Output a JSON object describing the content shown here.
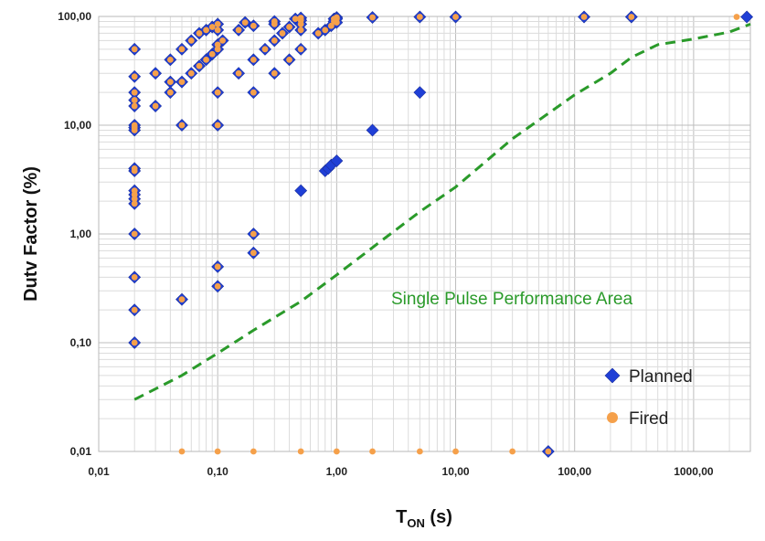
{
  "chart_data": {
    "type": "scatter",
    "title": "",
    "xlabel_main": "T",
    "xlabel_sub": "ON",
    "xlabel_unit": " (s)",
    "ylabel": "Dutv Factor (%)",
    "xscale": "log",
    "yscale": "log",
    "xlim": [
      0.01,
      3000
    ],
    "ylim": [
      0.01,
      100
    ],
    "grid": true,
    "legend_position": "bottom-right",
    "x_tick_labels": [
      {
        "value": 0.01,
        "label": "0,01"
      },
      {
        "value": 0.1,
        "label": "0,10"
      },
      {
        "value": 1,
        "label": "1,00"
      },
      {
        "value": 10,
        "label": "10,00"
      },
      {
        "value": 100,
        "label": "100,00"
      },
      {
        "value": 1000,
        "label": "1000,00"
      }
    ],
    "y_tick_labels": [
      {
        "value": 0.01,
        "label": "0,01"
      },
      {
        "value": 0.1,
        "label": "0,10"
      },
      {
        "value": 1,
        "label": "1,00"
      },
      {
        "value": 10,
        "label": "10,00"
      },
      {
        "value": 100,
        "label": "100,00"
      }
    ],
    "annotation": {
      "text": "Single Pulse Performance Area",
      "color": "#2a9a2a"
    },
    "series": [
      {
        "name": "Planned",
        "marker": "diamond",
        "color": "#1f3fd6",
        "points": [
          [
            0.02,
            50
          ],
          [
            0.02,
            28
          ],
          [
            0.02,
            20
          ],
          [
            0.02,
            17
          ],
          [
            0.02,
            15
          ],
          [
            0.02,
            10
          ],
          [
            0.02,
            9.5
          ],
          [
            0.02,
            9
          ],
          [
            0.02,
            4
          ],
          [
            0.02,
            3.8
          ],
          [
            0.02,
            2.5
          ],
          [
            0.02,
            2.3
          ],
          [
            0.02,
            2.1
          ],
          [
            0.02,
            1.9
          ],
          [
            0.02,
            1
          ],
          [
            0.02,
            0.4
          ],
          [
            0.02,
            0.2
          ],
          [
            0.02,
            0.1
          ],
          [
            0.03,
            30
          ],
          [
            0.03,
            15
          ],
          [
            0.04,
            40
          ],
          [
            0.04,
            25
          ],
          [
            0.04,
            20
          ],
          [
            0.05,
            50
          ],
          [
            0.05,
            25
          ],
          [
            0.05,
            10
          ],
          [
            0.05,
            0.25
          ],
          [
            0.06,
            60
          ],
          [
            0.06,
            30
          ],
          [
            0.07,
            70
          ],
          [
            0.07,
            35
          ],
          [
            0.08,
            75
          ],
          [
            0.08,
            40
          ],
          [
            0.09,
            80
          ],
          [
            0.09,
            45
          ],
          [
            0.1,
            85
          ],
          [
            0.1,
            75
          ],
          [
            0.1,
            55
          ],
          [
            0.1,
            50
          ],
          [
            0.1,
            20
          ],
          [
            0.1,
            10
          ],
          [
            0.1,
            0.5
          ],
          [
            0.1,
            0.33
          ],
          [
            0.11,
            60
          ],
          [
            0.15,
            75
          ],
          [
            0.15,
            30
          ],
          [
            0.17,
            88
          ],
          [
            0.2,
            82
          ],
          [
            0.2,
            40
          ],
          [
            0.2,
            20
          ],
          [
            0.2,
            1
          ],
          [
            0.2,
            0.67
          ],
          [
            0.25,
            50
          ],
          [
            0.3,
            90
          ],
          [
            0.3,
            85
          ],
          [
            0.3,
            60
          ],
          [
            0.3,
            30
          ],
          [
            0.35,
            70
          ],
          [
            0.4,
            80
          ],
          [
            0.4,
            40
          ],
          [
            0.45,
            95
          ],
          [
            0.5,
            97
          ],
          [
            0.5,
            92
          ],
          [
            0.5,
            85
          ],
          [
            0.5,
            75
          ],
          [
            0.5,
            50
          ],
          [
            0.5,
            2.5
          ],
          [
            0.7,
            70
          ],
          [
            0.8,
            75
          ],
          [
            0.8,
            3.8
          ],
          [
            0.85,
            4
          ],
          [
            0.9,
            82
          ],
          [
            0.9,
            4.3
          ],
          [
            0.95,
            95
          ],
          [
            0.95,
            90
          ],
          [
            1,
            98
          ],
          [
            1,
            95
          ],
          [
            1,
            88
          ],
          [
            1,
            4.7
          ],
          [
            2,
            98
          ],
          [
            2,
            9
          ],
          [
            5,
            99
          ],
          [
            5,
            20
          ],
          [
            10,
            99
          ],
          [
            60,
            0.01
          ],
          [
            120,
            99
          ],
          [
            300,
            99
          ],
          [
            2800,
            99
          ]
        ]
      },
      {
        "name": "Fired",
        "marker": "circle",
        "color": "#f5a04a",
        "points": [
          [
            0.02,
            50
          ],
          [
            0.02,
            28
          ],
          [
            0.02,
            20
          ],
          [
            0.02,
            17
          ],
          [
            0.02,
            15
          ],
          [
            0.02,
            10
          ],
          [
            0.02,
            9.5
          ],
          [
            0.02,
            9
          ],
          [
            0.02,
            4
          ],
          [
            0.02,
            3.8
          ],
          [
            0.02,
            2.5
          ],
          [
            0.02,
            2.3
          ],
          [
            0.02,
            2.1
          ],
          [
            0.02,
            1.9
          ],
          [
            0.02,
            1
          ],
          [
            0.02,
            0.4
          ],
          [
            0.02,
            0.2
          ],
          [
            0.02,
            0.1
          ],
          [
            0.03,
            30
          ],
          [
            0.03,
            15
          ],
          [
            0.04,
            40
          ],
          [
            0.04,
            25
          ],
          [
            0.04,
            20
          ],
          [
            0.05,
            50
          ],
          [
            0.05,
            25
          ],
          [
            0.05,
            10
          ],
          [
            0.05,
            0.25
          ],
          [
            0.06,
            60
          ],
          [
            0.06,
            30
          ],
          [
            0.07,
            70
          ],
          [
            0.07,
            35
          ],
          [
            0.08,
            75
          ],
          [
            0.08,
            40
          ],
          [
            0.09,
            80
          ],
          [
            0.09,
            45
          ],
          [
            0.1,
            85
          ],
          [
            0.1,
            75
          ],
          [
            0.1,
            55
          ],
          [
            0.1,
            50
          ],
          [
            0.1,
            20
          ],
          [
            0.1,
            10
          ],
          [
            0.1,
            0.5
          ],
          [
            0.1,
            0.33
          ],
          [
            0.11,
            60
          ],
          [
            0.15,
            75
          ],
          [
            0.15,
            30
          ],
          [
            0.17,
            88
          ],
          [
            0.2,
            82
          ],
          [
            0.2,
            40
          ],
          [
            0.2,
            20
          ],
          [
            0.2,
            1
          ],
          [
            0.2,
            0.67
          ],
          [
            0.25,
            50
          ],
          [
            0.3,
            90
          ],
          [
            0.3,
            85
          ],
          [
            0.3,
            60
          ],
          [
            0.3,
            30
          ],
          [
            0.35,
            70
          ],
          [
            0.4,
            80
          ],
          [
            0.4,
            40
          ],
          [
            0.45,
            95
          ],
          [
            0.5,
            97
          ],
          [
            0.5,
            92
          ],
          [
            0.5,
            85
          ],
          [
            0.5,
            75
          ],
          [
            0.5,
            50
          ],
          [
            0.7,
            70
          ],
          [
            0.8,
            75
          ],
          [
            0.9,
            82
          ],
          [
            0.95,
            95
          ],
          [
            0.95,
            90
          ],
          [
            1,
            98
          ],
          [
            1,
            95
          ],
          [
            1,
            88
          ],
          [
            2,
            98
          ],
          [
            5,
            99
          ],
          [
            10,
            99
          ],
          [
            60,
            0.01
          ],
          [
            120,
            99
          ],
          [
            300,
            99
          ],
          [
            2300,
            99
          ],
          [
            0.05,
            0.01
          ],
          [
            0.1,
            0.01
          ],
          [
            0.2,
            0.01
          ],
          [
            0.5,
            0.01
          ],
          [
            1,
            0.01
          ],
          [
            2,
            0.01
          ],
          [
            5,
            0.01
          ],
          [
            10,
            0.01
          ],
          [
            30,
            0.01
          ]
        ]
      }
    ],
    "limit_curve": {
      "style": "dashed",
      "color": "#2a9a2a",
      "points": [
        [
          0.02,
          0.03
        ],
        [
          0.05,
          0.05
        ],
        [
          0.1,
          0.08
        ],
        [
          0.2,
          0.13
        ],
        [
          0.5,
          0.24
        ],
        [
          1,
          0.42
        ],
        [
          2,
          0.75
        ],
        [
          5,
          1.6
        ],
        [
          10,
          2.7
        ],
        [
          30,
          7.5
        ],
        [
          100,
          19
        ],
        [
          200,
          30
        ],
        [
          300,
          42
        ],
        [
          500,
          55
        ],
        [
          1000,
          62
        ],
        [
          2000,
          72
        ],
        [
          3000,
          85
        ]
      ]
    }
  }
}
